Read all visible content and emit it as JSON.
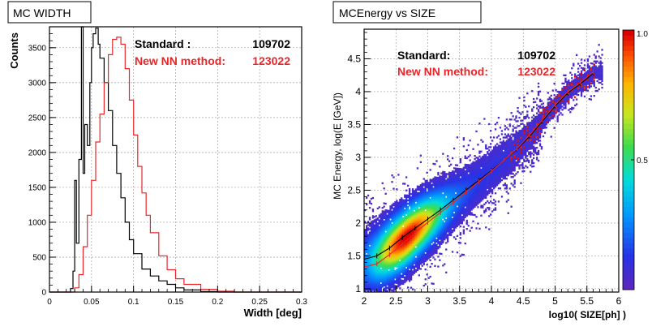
{
  "colors": {
    "standard": "#000000",
    "nn": "#e8262a",
    "frame": "#000000",
    "grid": "#a0a0a0"
  },
  "chart_data": [
    {
      "type": "line",
      "title": "MC WIDTH",
      "xlabel": "Width [deg]",
      "ylabel": "Counts",
      "xlim": [
        0,
        0.3
      ],
      "ylim": [
        0,
        3800
      ],
      "xticks": [
        "0",
        "0.05",
        "0.1",
        "0.15",
        "0.2",
        "0.25",
        "0.3"
      ],
      "yticks": [
        "0",
        "500",
        "1000",
        "1500",
        "2000",
        "2500",
        "3000",
        "3500"
      ],
      "grid": true,
      "legend": [
        {
          "label": "Standard :",
          "value": "109702",
          "color": "#000000"
        },
        {
          "label": "New NN method:",
          "value": "123022",
          "color": "#e8262a"
        }
      ],
      "series": [
        {
          "color": "#000000",
          "x": [
            0.0,
            0.02,
            0.025,
            0.028,
            0.03,
            0.032,
            0.035,
            0.038,
            0.04,
            0.042,
            0.045,
            0.048,
            0.05,
            0.052,
            0.055,
            0.058,
            0.06,
            0.065,
            0.07,
            0.075,
            0.08,
            0.085,
            0.09,
            0.095,
            0.1,
            0.11,
            0.12,
            0.13,
            0.14,
            0.15,
            0.16,
            0.18,
            0.2,
            0.3
          ],
          "y": [
            0,
            0,
            50,
            300,
            1600,
            700,
            1900,
            3800,
            1700,
            2400,
            2100,
            3000,
            3500,
            3700,
            3780,
            3550,
            3350,
            3000,
            2600,
            2100,
            1700,
            1350,
            1000,
            750,
            550,
            330,
            230,
            160,
            110,
            60,
            30,
            8,
            0,
            0
          ]
        },
        {
          "color": "#e8262a",
          "x": [
            0.0,
            0.025,
            0.03,
            0.035,
            0.04,
            0.045,
            0.05,
            0.055,
            0.06,
            0.065,
            0.07,
            0.075,
            0.08,
            0.085,
            0.09,
            0.095,
            0.1,
            0.105,
            0.11,
            0.115,
            0.12,
            0.13,
            0.14,
            0.15,
            0.16,
            0.18,
            0.2,
            0.22,
            0.3
          ],
          "y": [
            0,
            0,
            60,
            250,
            650,
            1100,
            1600,
            2150,
            2550,
            3000,
            3400,
            3620,
            3650,
            3550,
            3200,
            2750,
            2250,
            1800,
            1420,
            1100,
            850,
            520,
            320,
            190,
            110,
            40,
            12,
            0,
            0
          ]
        }
      ]
    },
    {
      "type": "heatmap",
      "title": "MCEnergy vs SIZE",
      "xlabel": "log10( SIZE[ph] )",
      "ylabel": "MC Energy, log(E [GeV])",
      "xlim": [
        2,
        6
      ],
      "ylim": [
        0.95,
        4.95
      ],
      "xticks": [
        "2",
        "2.5",
        "3",
        "3.5",
        "4",
        "4.5",
        "5",
        "5.5",
        "6"
      ],
      "yticks": [
        "1",
        "1.5",
        "2",
        "2.5",
        "3",
        "3.5",
        "4",
        "4.5"
      ],
      "colorbar": {
        "range": [
          0,
          1.0
        ],
        "ticks": [
          "0.5",
          "1.0"
        ]
      },
      "grid": true,
      "legend": [
        {
          "label": "Standard:",
          "value": "109702",
          "color": "#000000"
        },
        {
          "label": "New NN method:",
          "value": "123022",
          "color": "#e8262a"
        }
      ],
      "density_ridge": {
        "x": [
          2.0,
          2.2,
          2.4,
          2.6,
          2.8,
          3.0,
          3.2,
          3.4,
          3.6,
          3.8,
          4.0,
          4.2,
          4.4,
          4.6,
          4.8,
          5.0,
          5.2,
          5.4,
          5.6
        ],
        "y": [
          1.38,
          1.45,
          1.58,
          1.72,
          1.88,
          2.03,
          2.17,
          2.32,
          2.47,
          2.62,
          2.78,
          2.95,
          3.12,
          3.32,
          3.55,
          3.78,
          3.98,
          4.12,
          4.28
        ],
        "peak": [
          2.65,
          1.72
        ]
      },
      "series": [
        {
          "color": "#000000",
          "x": [
            2.0,
            2.2,
            2.4,
            2.6,
            2.8,
            3.0,
            3.2,
            3.4,
            3.6,
            3.8,
            4.0,
            4.2,
            4.4,
            4.6,
            4.8,
            5.0,
            5.2,
            5.4,
            5.6
          ],
          "y": [
            1.45,
            1.5,
            1.62,
            1.78,
            1.92,
            2.06,
            2.2,
            2.35,
            2.5,
            2.65,
            2.8,
            2.96,
            3.12,
            3.32,
            3.55,
            3.78,
            3.98,
            4.12,
            4.28
          ]
        },
        {
          "color": "#e8262a",
          "x": [
            2.0,
            2.2,
            2.4,
            2.6,
            2.8,
            3.0,
            3.2,
            3.4,
            3.6,
            3.8,
            4.0,
            4.2,
            4.4,
            4.6,
            4.8,
            5.0,
            5.2,
            5.4,
            5.6
          ],
          "y": [
            1.33,
            1.38,
            1.52,
            1.68,
            1.85,
            2.01,
            2.16,
            2.31,
            2.47,
            2.63,
            2.79,
            2.96,
            3.13,
            3.34,
            3.57,
            3.8,
            4.0,
            4.14,
            4.3
          ]
        }
      ]
    }
  ]
}
